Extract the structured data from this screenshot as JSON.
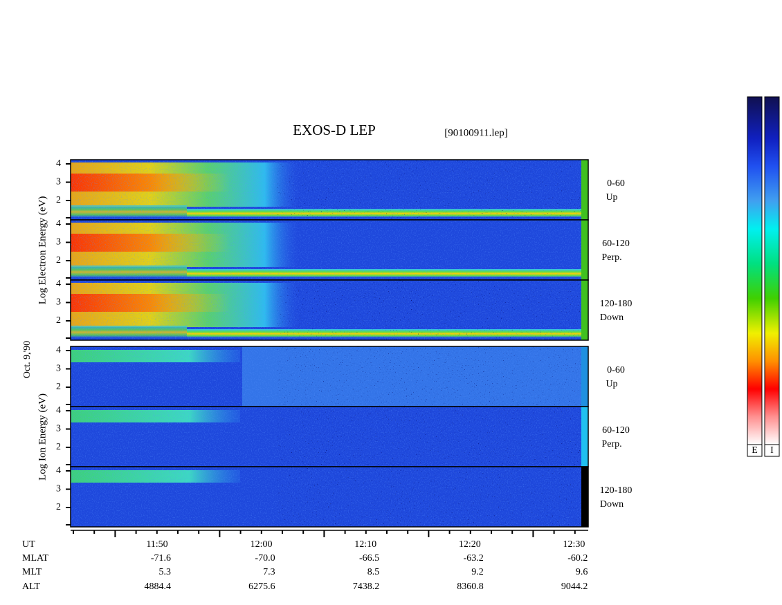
{
  "title": "EXOS-D LEP",
  "file": "[90100911.lep]",
  "date": "Oct. 9,'90",
  "electron_axis_label": "Log Electron Energy (eV)",
  "ion_axis_label": "Log Ion Energy (eV)",
  "yticks": [
    2,
    3,
    4
  ],
  "electron_panels": [
    {
      "range": "0-60",
      "direction": "Up"
    },
    {
      "range": "60-120",
      "direction": "Perp."
    },
    {
      "range": "120-180",
      "direction": "Down"
    }
  ],
  "ion_panels": [
    {
      "range": "0-60",
      "direction": "Up"
    },
    {
      "range": "60-120",
      "direction": "Perp."
    },
    {
      "range": "120-180",
      "direction": "Down"
    }
  ],
  "orbit": {
    "labels": [
      "UT",
      "MLAT",
      "MLT",
      "ALT"
    ],
    "ut": [
      "11:50",
      "12:00",
      "12:10",
      "12:20",
      "12:30"
    ],
    "mlat": [
      "-71.6",
      "-70.0",
      "-66.5",
      "-63.2",
      "-60.2"
    ],
    "mlt": [
      "5.3",
      "7.3",
      "8.5",
      "9.2",
      "9.6"
    ],
    "alt": [
      "4884.4",
      "6275.6",
      "7438.2",
      "8360.8",
      "9044.2"
    ]
  },
  "colorbar_labels": [
    "E",
    "I"
  ]
}
